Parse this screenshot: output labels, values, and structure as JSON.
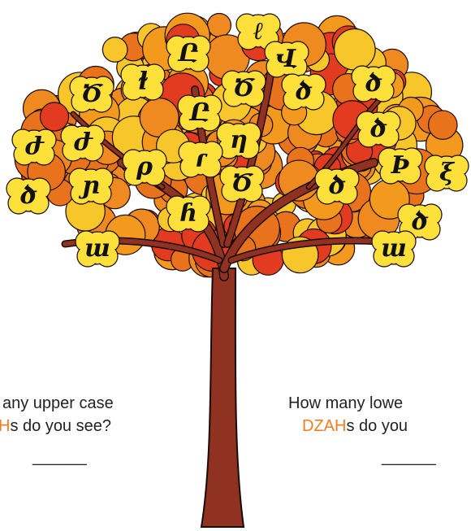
{
  "leaves": [
    {
      "glyph": "ℓ"
    },
    {
      "glyph": "Ը"
    },
    {
      "glyph": "Վ"
    },
    {
      "glyph": "ɫ"
    },
    {
      "glyph": "Ծ"
    },
    {
      "glyph": "Ծ"
    },
    {
      "glyph": "ծ"
    },
    {
      "glyph": "ծ"
    },
    {
      "glyph": "Ը"
    },
    {
      "glyph": "ժ"
    },
    {
      "glyph": "ժ"
    },
    {
      "glyph": "η"
    },
    {
      "glyph": "ծ"
    },
    {
      "glyph": "ρ"
    },
    {
      "glyph": "ɾ"
    },
    {
      "glyph": "ɲ"
    },
    {
      "glyph": "Ծ"
    },
    {
      "glyph": "Ϸ"
    },
    {
      "glyph": "ξ"
    },
    {
      "glyph": "ծ"
    },
    {
      "glyph": "ծ"
    },
    {
      "glyph": "ɦ"
    },
    {
      "glyph": "ծ"
    },
    {
      "glyph": "ɯ"
    },
    {
      "glyph": "ɯ"
    }
  ],
  "questions": [
    {
      "line1": "any upper case",
      "highlight": "H",
      "rest": "s do you see?",
      "blank": "______"
    },
    {
      "line1": "How many lowe",
      "highlight": "DZAH",
      "rest": "s do you",
      "blank": "______"
    }
  ]
}
